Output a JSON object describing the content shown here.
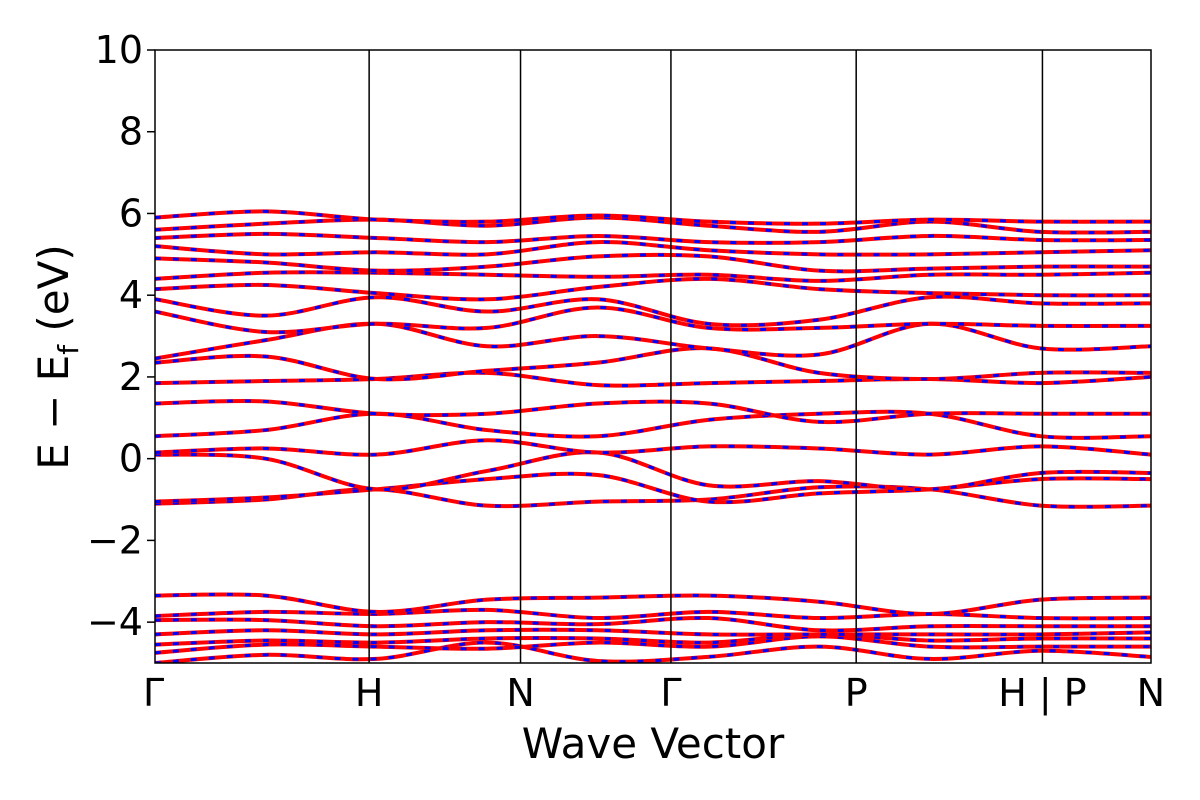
{
  "chart_data": {
    "type": "line",
    "xlabel": "Wave Vector",
    "ylabel_main": "E − E",
    "ylabel_sub": "f",
    "ylabel_unit": " (eV)",
    "ylim": [
      -5,
      10
    ],
    "yticks": [
      10,
      8,
      6,
      4,
      2,
      0,
      -2,
      -4
    ],
    "ytick_labels": [
      "10",
      "8",
      "6",
      "4",
      "2",
      "0",
      "−2",
      "−4"
    ],
    "kpoints": [
      {
        "label": "Γ",
        "x": 0.0
      },
      {
        "label": "H",
        "x": 0.215
      },
      {
        "label": "N",
        "x": 0.367
      },
      {
        "label": "Γ",
        "x": 0.518
      },
      {
        "label": "P",
        "x": 0.704
      },
      {
        "label": "H | P",
        "x": 0.891
      },
      {
        "label": "N",
        "x": 1.0
      }
    ],
    "series_colors": {
      "spin_up": "#ff0000",
      "spin_down": "#0000ff"
    },
    "bands": [
      [
        -5.0,
        -4.8,
        -4.9,
        -4.5,
        -4.95,
        -4.85,
        -4.6,
        -4.9,
        -4.7,
        -4.85
      ],
      [
        -4.75,
        -4.55,
        -4.6,
        -4.65,
        -4.5,
        -4.6,
        -4.35,
        -4.6,
        -4.6,
        -4.6
      ],
      [
        -4.55,
        -4.45,
        -4.5,
        -4.4,
        -4.4,
        -4.5,
        -4.3,
        -4.45,
        -4.4,
        -4.4
      ],
      [
        -4.3,
        -4.2,
        -4.3,
        -4.2,
        -4.2,
        -4.3,
        -4.3,
        -4.3,
        -4.3,
        -4.25
      ],
      [
        -3.95,
        -3.95,
        -4.1,
        -4.0,
        -4.05,
        -3.9,
        -4.2,
        -4.1,
        -4.1,
        -4.1
      ],
      [
        -3.85,
        -3.75,
        -3.8,
        -3.7,
        -3.9,
        -3.75,
        -3.9,
        -3.8,
        -3.9,
        -3.9
      ],
      [
        -3.35,
        -3.35,
        -3.75,
        -3.45,
        -3.4,
        -3.35,
        -3.5,
        -3.8,
        -3.45,
        -3.4
      ],
      [
        -1.1,
        -1.0,
        -0.75,
        -1.15,
        -1.05,
        -1.0,
        -0.7,
        -0.75,
        -1.15,
        -1.15
      ],
      [
        -1.05,
        -0.95,
        -0.75,
        -0.5,
        -0.4,
        -1.05,
        -0.85,
        -0.75,
        -0.5,
        -0.5
      ],
      [
        0.1,
        0.0,
        -0.75,
        -0.3,
        0.15,
        -0.65,
        -0.55,
        -0.75,
        -0.35,
        -0.35
      ],
      [
        0.15,
        0.25,
        0.1,
        0.45,
        0.15,
        0.3,
        0.25,
        0.1,
        0.3,
        0.1
      ],
      [
        0.55,
        0.7,
        1.1,
        0.7,
        0.55,
        0.95,
        1.1,
        1.1,
        0.55,
        0.55
      ],
      [
        1.35,
        1.4,
        1.1,
        1.1,
        1.35,
        1.35,
        0.9,
        1.1,
        1.1,
        1.1
      ],
      [
        1.85,
        1.9,
        1.95,
        2.1,
        1.8,
        1.85,
        1.9,
        1.95,
        1.85,
        2.0
      ],
      [
        2.35,
        2.5,
        1.95,
        2.15,
        2.35,
        2.7,
        2.1,
        1.95,
        2.1,
        2.1
      ],
      [
        2.45,
        2.9,
        3.3,
        2.75,
        3.0,
        2.7,
        2.55,
        3.3,
        2.7,
        2.75
      ],
      [
        3.6,
        3.1,
        3.3,
        3.2,
        3.7,
        3.2,
        3.2,
        3.3,
        3.25,
        3.25
      ],
      [
        3.9,
        3.5,
        3.95,
        3.6,
        3.9,
        3.3,
        3.4,
        3.95,
        3.8,
        3.8
      ],
      [
        4.15,
        4.25,
        4.05,
        3.9,
        4.2,
        4.4,
        4.15,
        4.05,
        4.0,
        4.0
      ],
      [
        4.4,
        4.55,
        4.55,
        4.5,
        4.45,
        4.5,
        4.35,
        4.5,
        4.5,
        4.55
      ],
      [
        4.9,
        4.8,
        4.6,
        4.7,
        4.95,
        4.95,
        4.6,
        4.65,
        4.7,
        4.7
      ],
      [
        5.2,
        5.0,
        5.05,
        5.0,
        5.3,
        5.1,
        5.0,
        5.0,
        5.05,
        5.1
      ],
      [
        5.4,
        5.5,
        5.4,
        5.3,
        5.45,
        5.3,
        5.3,
        5.45,
        5.35,
        5.35
      ],
      [
        5.6,
        5.75,
        5.85,
        5.7,
        5.9,
        5.7,
        5.55,
        5.8,
        5.55,
        5.55
      ],
      [
        5.9,
        6.05,
        5.85,
        5.8,
        5.95,
        5.8,
        5.75,
        5.85,
        5.8,
        5.8
      ]
    ]
  }
}
